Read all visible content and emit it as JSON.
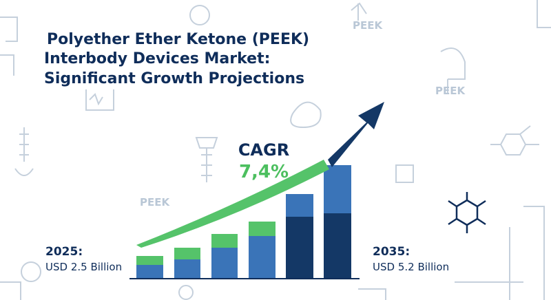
{
  "title": {
    "line1": "Polyether Ether Ketone (PEEK)",
    "line2": "Interbody Devices Market:",
    "line3": "Significant Growth Projections"
  },
  "cagr": {
    "label": "CAGR",
    "value": "7,4%"
  },
  "start": {
    "year": "2025:",
    "value": "USD 2.5 Billion"
  },
  "end": {
    "year": "2035:",
    "value": "USD 5.2 Billion"
  },
  "watermarks": [
    "PEEK",
    "PEEK",
    "PEEK"
  ]
}
